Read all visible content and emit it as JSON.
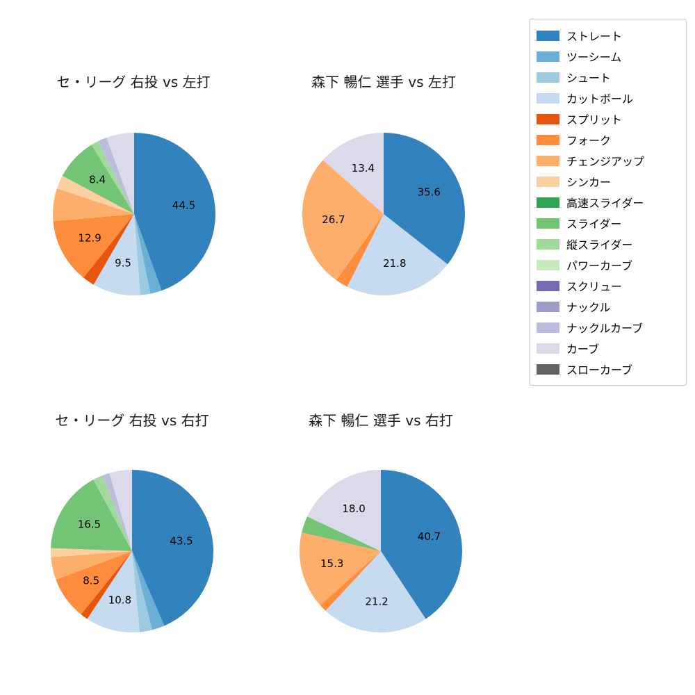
{
  "figure": {
    "background": "#ffffff",
    "title_color": "#1a1a1a",
    "percent_label_color": "#000000"
  },
  "legend": {
    "position": "top-right",
    "border_color": "#cccccc",
    "items": [
      {
        "label": "ストレート",
        "color": "#3182bd"
      },
      {
        "label": "ツーシーム",
        "color": "#6baed6"
      },
      {
        "label": "シュート",
        "color": "#9ecae1"
      },
      {
        "label": "カットボール",
        "color": "#c6dbef"
      },
      {
        "label": "スプリット",
        "color": "#e6550d"
      },
      {
        "label": "フォーク",
        "color": "#fd8d3c"
      },
      {
        "label": "チェンジアップ",
        "color": "#fdae6b"
      },
      {
        "label": "シンカー",
        "color": "#fdd0a2"
      },
      {
        "label": "高速スライダー",
        "color": "#31a354"
      },
      {
        "label": "スライダー",
        "color": "#74c476"
      },
      {
        "label": "縦スライダー",
        "color": "#a1d99b"
      },
      {
        "label": "パワーカーブ",
        "color": "#c7e9c0"
      },
      {
        "label": "スクリュー",
        "color": "#756bb1"
      },
      {
        "label": "ナックル",
        "color": "#9e9ac8"
      },
      {
        "label": "ナックルカーブ",
        "color": "#bcbddc"
      },
      {
        "label": "カーブ",
        "color": "#dadaeb"
      },
      {
        "label": "スローカーブ",
        "color": "#636363"
      }
    ]
  },
  "chart_data": [
    {
      "type": "pie",
      "title": "セ・リーグ 右投 vs 左打",
      "start_angle": "top",
      "direction": "clockwise",
      "unit": "percent",
      "label_threshold": 8.0,
      "slices": [
        {
          "name": "ストレート",
          "value": 44.5
        },
        {
          "name": "ツーシーム",
          "value": 2.3
        },
        {
          "name": "シュート",
          "value": 2.0
        },
        {
          "name": "カットボール",
          "value": 9.5
        },
        {
          "name": "スプリット",
          "value": 2.4
        },
        {
          "name": "フォーク",
          "value": 12.9
        },
        {
          "name": "チェンジアップ",
          "value": 6.5
        },
        {
          "name": "シンカー",
          "value": 2.7
        },
        {
          "name": "スライダー",
          "value": 8.4
        },
        {
          "name": "縦スライダー",
          "value": 1.5
        },
        {
          "name": "ナックルカーブ",
          "value": 1.8
        },
        {
          "name": "カーブ",
          "value": 5.5
        }
      ]
    },
    {
      "type": "pie",
      "title": "森下 暢仁 選手 vs 左打",
      "start_angle": "top",
      "direction": "clockwise",
      "unit": "percent",
      "label_threshold": 8.0,
      "slices": [
        {
          "name": "ストレート",
          "value": 35.6
        },
        {
          "name": "カットボール",
          "value": 21.8
        },
        {
          "name": "フォーク",
          "value": 2.5
        },
        {
          "name": "チェンジアップ",
          "value": 26.7
        },
        {
          "name": "カーブ",
          "value": 13.4
        }
      ]
    },
    {
      "type": "pie",
      "title": "セ・リーグ 右投 vs 右打",
      "start_angle": "top",
      "direction": "clockwise",
      "unit": "percent",
      "label_threshold": 8.0,
      "slices": [
        {
          "name": "ストレート",
          "value": 43.5
        },
        {
          "name": "ツーシーム",
          "value": 2.5
        },
        {
          "name": "シュート",
          "value": 2.5
        },
        {
          "name": "カットボール",
          "value": 10.8
        },
        {
          "name": "スプリット",
          "value": 1.5
        },
        {
          "name": "フォーク",
          "value": 8.5
        },
        {
          "name": "チェンジアップ",
          "value": 4.5
        },
        {
          "name": "シンカー",
          "value": 1.8
        },
        {
          "name": "スライダー",
          "value": 16.5
        },
        {
          "name": "縦スライダー",
          "value": 2.0
        },
        {
          "name": "ナックルカーブ",
          "value": 1.4
        },
        {
          "name": "カーブ",
          "value": 4.5
        }
      ]
    },
    {
      "type": "pie",
      "title": "森下 暢仁 選手 vs 右打",
      "start_angle": "top",
      "direction": "clockwise",
      "unit": "percent",
      "label_threshold": 8.0,
      "slices": [
        {
          "name": "ストレート",
          "value": 40.7
        },
        {
          "name": "カットボール",
          "value": 21.2
        },
        {
          "name": "フォーク",
          "value": 1.5
        },
        {
          "name": "チェンジアップ",
          "value": 15.3
        },
        {
          "name": "スライダー",
          "value": 3.3
        },
        {
          "name": "カーブ",
          "value": 18.0
        }
      ]
    }
  ]
}
